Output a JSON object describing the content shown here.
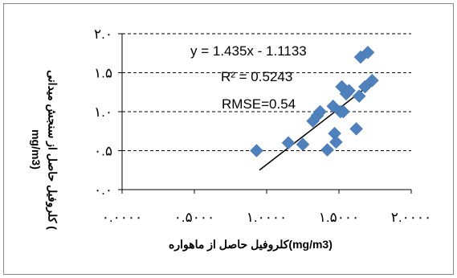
{
  "chart_data": {
    "type": "scatter",
    "xlabel": "کلروفیل حاصل از ماهواره(mg/m3)",
    "ylabel_line1": "کلروفیل حاصل از سنجش میدانی (",
    "ylabel_line2": "mg/m3)",
    "x_tick_labels": [
      "۰.۰۰۰۰",
      "۰.۵۰۰۰",
      "۱.۰۰۰۰",
      "۱.۵۰۰۰",
      "۲.۰۰۰۰"
    ],
    "y_tick_labels": [
      "۰.۰",
      "۰.۵",
      "۱.۰",
      "۱.۵",
      "۲.۰"
    ],
    "x_ticks": [
      0,
      0.5,
      1,
      1.5,
      2
    ],
    "y_ticks": [
      0,
      0.5,
      1,
      1.5,
      2
    ],
    "xlim": [
      0,
      2
    ],
    "ylim": [
      0,
      2
    ],
    "grid": "horizontal",
    "marker_color": "#4F81BD",
    "trendline_color": "#000000",
    "trendline": {
      "slope": 1.435,
      "intercept": -1.1133,
      "x_range": [
        0.95,
        1.75
      ]
    },
    "annotations": {
      "equation": "y = 1.435x - 1.1133",
      "r2": "R² = 0.5243",
      "rmse": "RMSE=0.54"
    },
    "points": [
      [
        0.93,
        0.5
      ],
      [
        1.15,
        0.6
      ],
      [
        1.25,
        0.58
      ],
      [
        1.32,
        0.88
      ],
      [
        1.35,
        0.95
      ],
      [
        1.37,
        1.0
      ],
      [
        1.42,
        0.51
      ],
      [
        1.46,
        1.07
      ],
      [
        1.47,
        0.72
      ],
      [
        1.48,
        0.61
      ],
      [
        1.51,
        1.0
      ],
      [
        1.52,
        1.32
      ],
      [
        1.53,
        1.0
      ],
      [
        1.55,
        1.23
      ],
      [
        1.57,
        1.27
      ],
      [
        1.62,
        0.78
      ],
      [
        1.64,
        1.2
      ],
      [
        1.65,
        1.7
      ],
      [
        1.68,
        1.32
      ],
      [
        1.7,
        1.76
      ],
      [
        1.73,
        1.4
      ]
    ]
  }
}
